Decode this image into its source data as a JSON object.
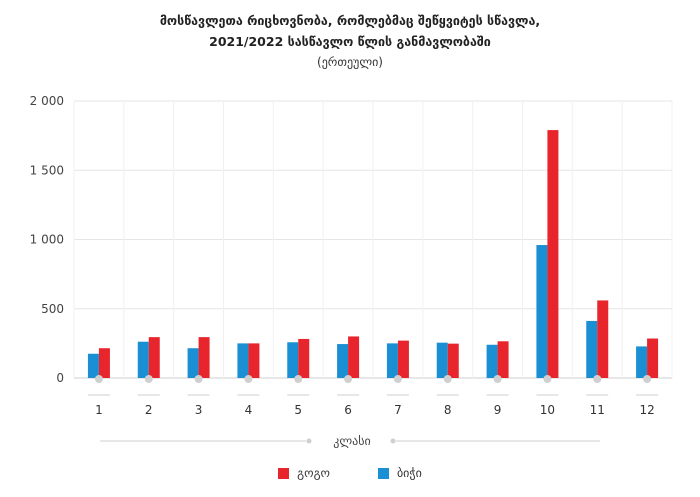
{
  "title_line1": "მოსწავლეთა რიცხოვნობა, რომლებმაც შეწყვიტეს სწავლა,",
  "title_line2": "2021/2022 სასწავლო წლის განმავლობაში",
  "subtitle": "(ერთეული)",
  "colors": {
    "girls": "#e8242c",
    "boys": "#1a8fd3",
    "grid": "#e6e6e6",
    "axis": "#cfcfcf"
  },
  "legend": {
    "girls": "გოგო",
    "boys": "ბიჭი"
  },
  "chart_data": {
    "type": "bar",
    "xlabel": "კლასი",
    "ylabel": "",
    "ylim": [
      0,
      2000
    ],
    "yticks": [
      0,
      500,
      1000,
      1500,
      2000
    ],
    "ytick_labels": [
      "0",
      "500",
      "1 000",
      "1 500",
      "2 000"
    ],
    "categories": [
      "1",
      "2",
      "3",
      "4",
      "5",
      "6",
      "7",
      "8",
      "9",
      "10",
      "11",
      "12"
    ],
    "series": [
      {
        "name": "ბიჭი",
        "values": [
          175,
          262,
          215,
          250,
          258,
          245,
          250,
          255,
          240,
          960,
          412,
          228
        ]
      },
      {
        "name": "გოგო",
        "values": [
          215,
          295,
          295,
          250,
          282,
          300,
          270,
          248,
          265,
          1790,
          560,
          285
        ]
      }
    ],
    "legend_position": "bottom",
    "grid": true
  }
}
